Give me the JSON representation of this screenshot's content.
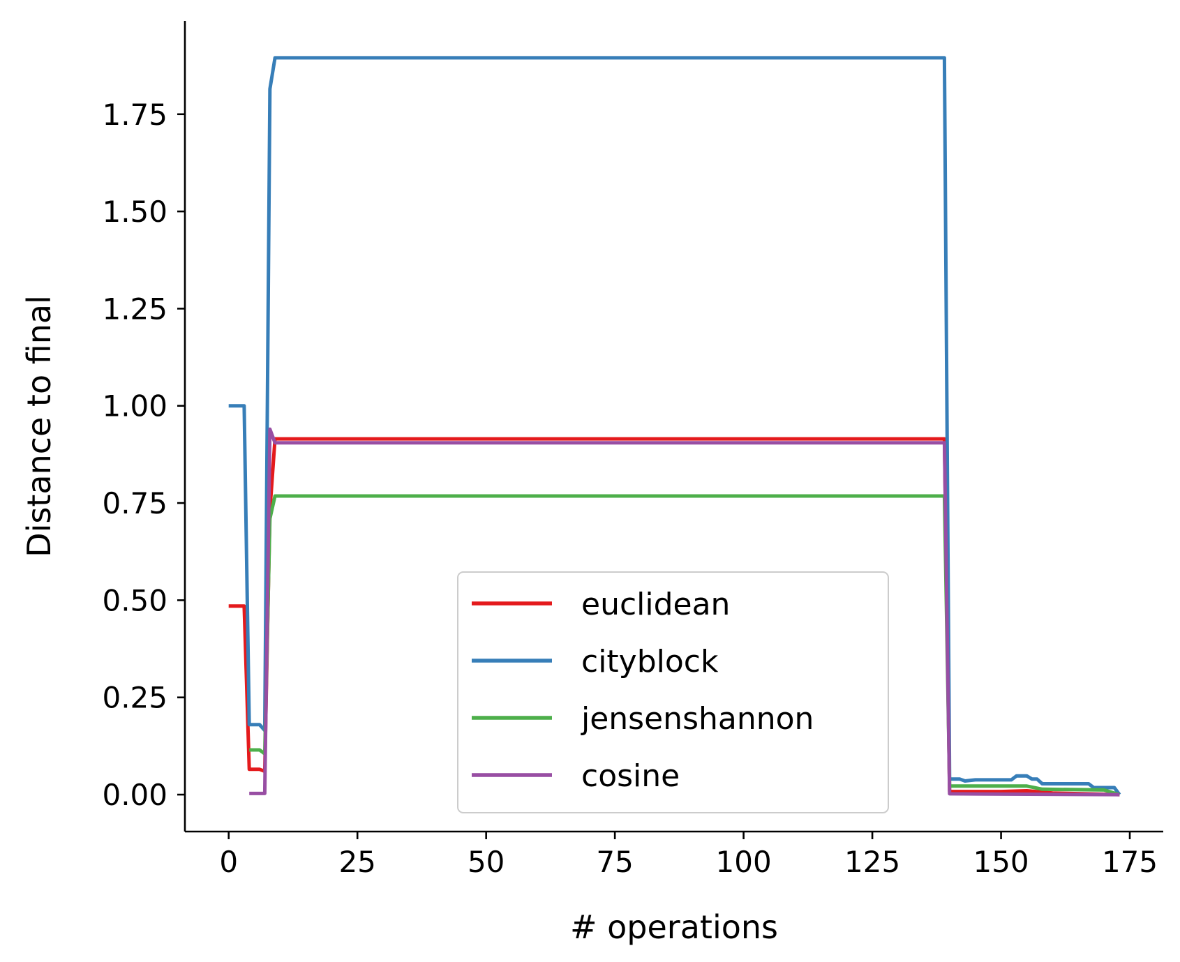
{
  "chart_data": {
    "type": "line",
    "title": "",
    "xlabel": "# operations",
    "ylabel": "Distance to final",
    "xlim": [
      -8.5,
      181.5
    ],
    "ylim": [
      -0.095,
      1.99
    ],
    "xticks": [
      0,
      25,
      50,
      75,
      100,
      125,
      150,
      175
    ],
    "xtick_labels": [
      "0",
      "25",
      "50",
      "75",
      "100",
      "125",
      "150",
      "175"
    ],
    "yticks": [
      0.0,
      0.25,
      0.5,
      0.75,
      1.0,
      1.25,
      1.5,
      1.75
    ],
    "ytick_labels": [
      "0.00",
      "0.25",
      "0.50",
      "0.75",
      "1.00",
      "1.25",
      "1.50",
      "1.75"
    ],
    "grid": false,
    "legend_position": "lower-right",
    "series": [
      {
        "name": "euclidean",
        "color": "#e41a1c",
        "points": [
          [
            0,
            0.485
          ],
          [
            3,
            0.485
          ],
          [
            4,
            0.065
          ],
          [
            6,
            0.065
          ],
          [
            7,
            0.06
          ],
          [
            8,
            0.73
          ],
          [
            9,
            0.915
          ],
          [
            139,
            0.915
          ],
          [
            140,
            0.008
          ],
          [
            150,
            0.008
          ],
          [
            155,
            0.01
          ],
          [
            160,
            0.004
          ],
          [
            173,
            0.0
          ]
        ]
      },
      {
        "name": "cityblock",
        "color": "#377eb8",
        "points": [
          [
            0,
            1.0
          ],
          [
            3,
            1.0
          ],
          [
            4,
            0.18
          ],
          [
            6,
            0.18
          ],
          [
            7,
            0.165
          ],
          [
            8,
            1.815
          ],
          [
            9,
            1.895
          ],
          [
            139,
            1.895
          ],
          [
            140,
            0.04
          ],
          [
            142,
            0.04
          ],
          [
            143,
            0.035
          ],
          [
            145,
            0.038
          ],
          [
            152,
            0.038
          ],
          [
            153,
            0.048
          ],
          [
            155,
            0.048
          ],
          [
            156,
            0.04
          ],
          [
            157,
            0.04
          ],
          [
            158,
            0.028
          ],
          [
            167,
            0.028
          ],
          [
            168,
            0.018
          ],
          [
            172,
            0.018
          ],
          [
            173,
            0.0
          ]
        ]
      },
      {
        "name": "jensenshannon",
        "color": "#4daf4a",
        "points": [
          [
            4,
            0.115
          ],
          [
            6,
            0.115
          ],
          [
            7,
            0.105
          ],
          [
            8,
            0.71
          ],
          [
            9,
            0.768
          ],
          [
            139,
            0.768
          ],
          [
            140,
            0.022
          ],
          [
            150,
            0.022
          ],
          [
            155,
            0.022
          ],
          [
            158,
            0.014
          ],
          [
            170,
            0.012
          ],
          [
            173,
            0.0
          ]
        ]
      },
      {
        "name": "cosine",
        "color": "#984ea3",
        "points": [
          [
            4,
            0.003
          ],
          [
            7,
            0.003
          ],
          [
            8,
            0.94
          ],
          [
            9,
            0.905
          ],
          [
            139,
            0.905
          ],
          [
            140,
            0.002
          ],
          [
            173,
            0.0
          ]
        ]
      }
    ]
  }
}
